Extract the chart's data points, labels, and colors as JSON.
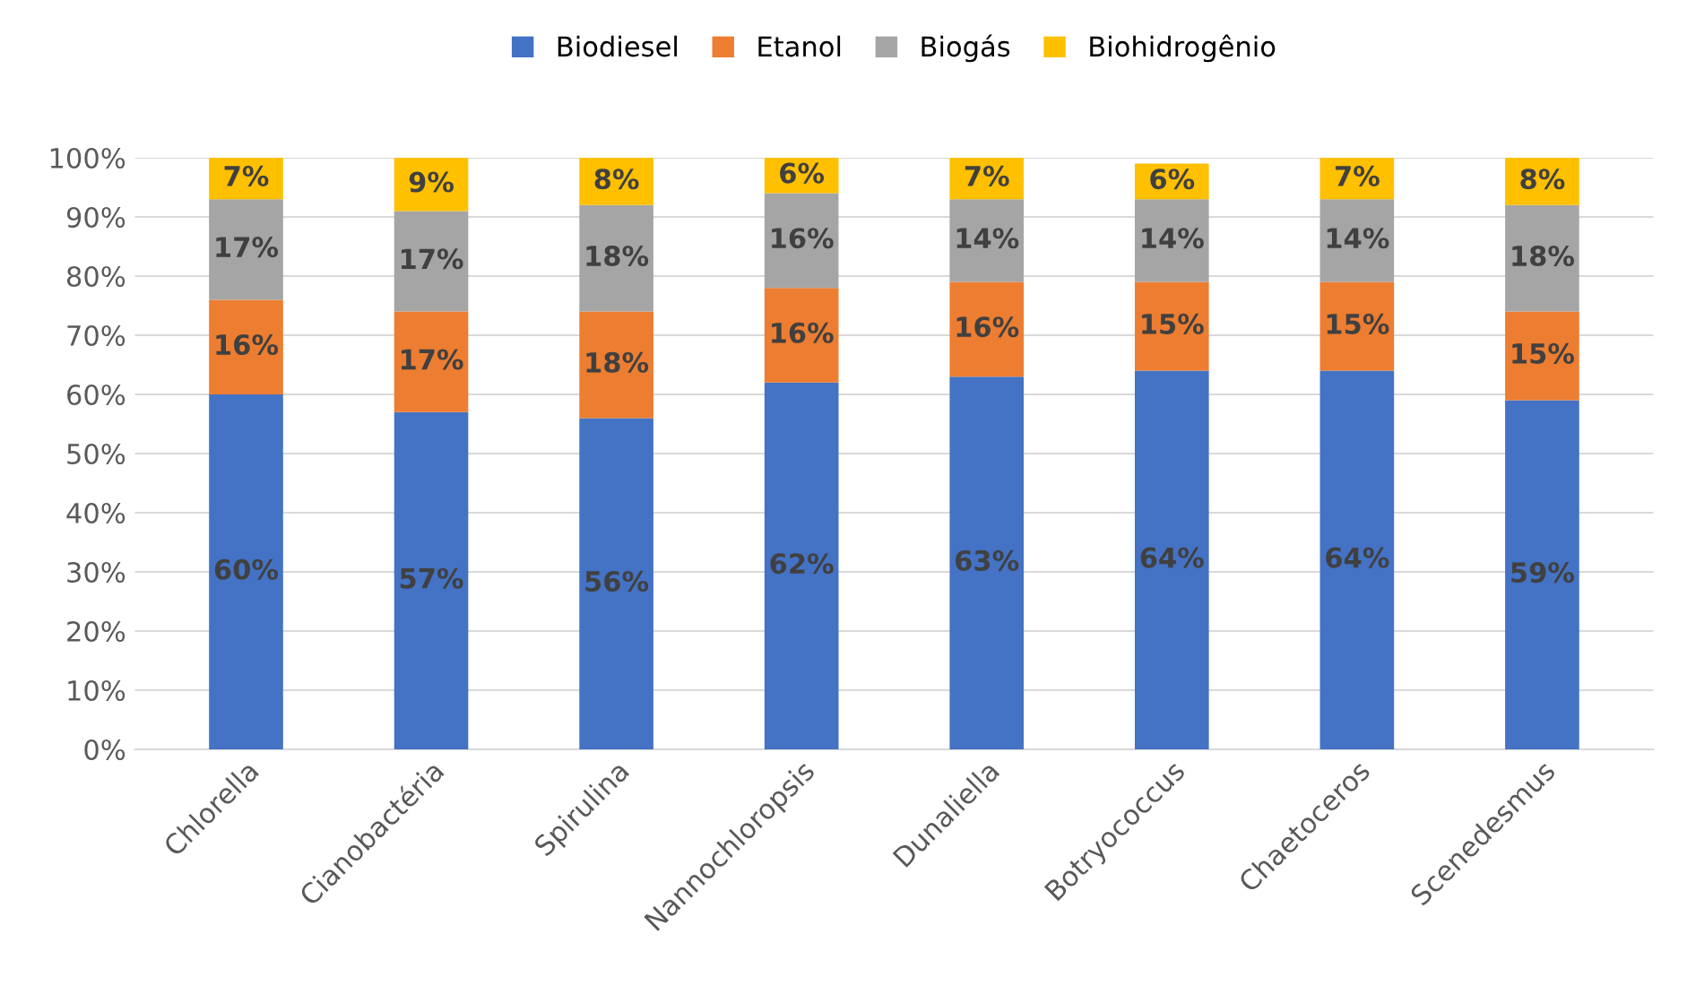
{
  "chart_data": {
    "type": "bar",
    "stacked": true,
    "categories": [
      "Chlorella",
      "Cianobactéria",
      "Spirulina",
      "Nannochloropsis",
      "Dunaliella",
      "Botryococcus",
      "Chaetoceros",
      "Scenedesmus"
    ],
    "series": [
      {
        "name": "Biodiesel",
        "color": "#4472c4",
        "values": [
          60,
          57,
          56,
          62,
          63,
          64,
          64,
          59
        ],
        "value_labels": [
          "60%",
          "57%",
          "56%",
          "62%",
          "63%",
          "64%",
          "64%",
          "59%"
        ]
      },
      {
        "name": "Etanol",
        "color": "#ed7d31",
        "values": [
          16,
          17,
          18,
          16,
          16,
          15,
          15,
          15
        ],
        "value_labels": [
          "16%",
          "17%",
          "18%",
          "16%",
          "16%",
          "15%",
          "15%",
          "15%"
        ]
      },
      {
        "name": "Biogás",
        "color": "#a5a5a5",
        "values": [
          17,
          17,
          18,
          16,
          14,
          14,
          14,
          18
        ],
        "value_labels": [
          "17%",
          "17%",
          "18%",
          "16%",
          "14%",
          "14%",
          "14%",
          "18%"
        ]
      },
      {
        "name": "Biohidrogênio",
        "color": "#ffc000",
        "values": [
          7,
          9,
          8,
          6,
          7,
          6,
          7,
          8
        ],
        "value_labels": [
          "7%",
          "9%",
          "8%",
          "6%",
          "7%",
          "6%",
          "7%",
          "8%"
        ]
      }
    ],
    "ylim": [
      0,
      100
    ],
    "yticks": [
      {
        "value": 0,
        "label": "0%"
      },
      {
        "value": 10,
        "label": "10%"
      },
      {
        "value": 20,
        "label": "20%"
      },
      {
        "value": 30,
        "label": "30%"
      },
      {
        "value": 40,
        "label": "40%"
      },
      {
        "value": 50,
        "label": "50%"
      },
      {
        "value": 60,
        "label": "60%"
      },
      {
        "value": 70,
        "label": "70%"
      },
      {
        "value": 80,
        "label": "80%"
      },
      {
        "value": 90,
        "label": "90%"
      },
      {
        "value": 100,
        "label": "100%"
      }
    ],
    "grid": "y",
    "legend": "top"
  }
}
